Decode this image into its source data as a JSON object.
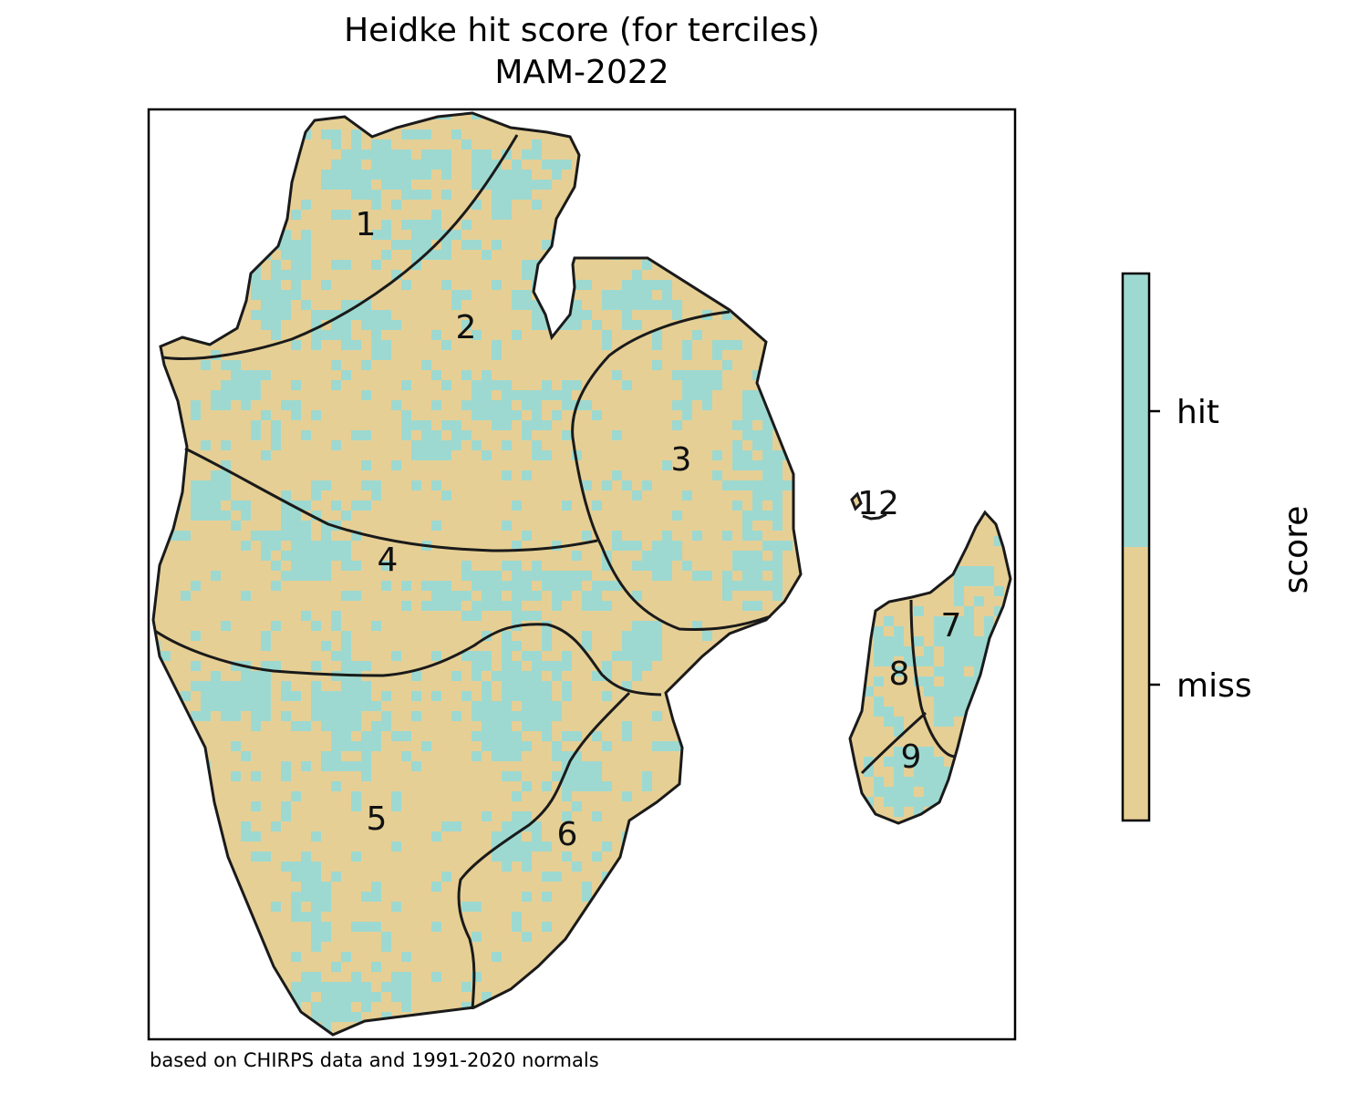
{
  "title": {
    "line1": "Heidke hit score (for terciles)",
    "line2": "MAM-2022"
  },
  "credit": "based on CHIRPS data and 1991-2020 normals",
  "colorbar": {
    "label": "score",
    "categories": [
      {
        "label": "hit",
        "color": "#9dd9d0"
      },
      {
        "label": "miss",
        "color": "#e6cf95"
      }
    ]
  },
  "regions": [
    {
      "id": "1",
      "label": "1"
    },
    {
      "id": "2",
      "label": "2"
    },
    {
      "id": "3",
      "label": "3"
    },
    {
      "id": "4",
      "label": "4"
    },
    {
      "id": "5",
      "label": "5"
    },
    {
      "id": "6",
      "label": "6"
    },
    {
      "id": "7",
      "label": "7"
    },
    {
      "id": "8",
      "label": "8"
    },
    {
      "id": "9",
      "label": "9"
    },
    {
      "id": "12",
      "label": "12"
    }
  ],
  "colors": {
    "hit": "#9dd9d0",
    "miss": "#e6cf95",
    "border": "#1a1a1a"
  }
}
